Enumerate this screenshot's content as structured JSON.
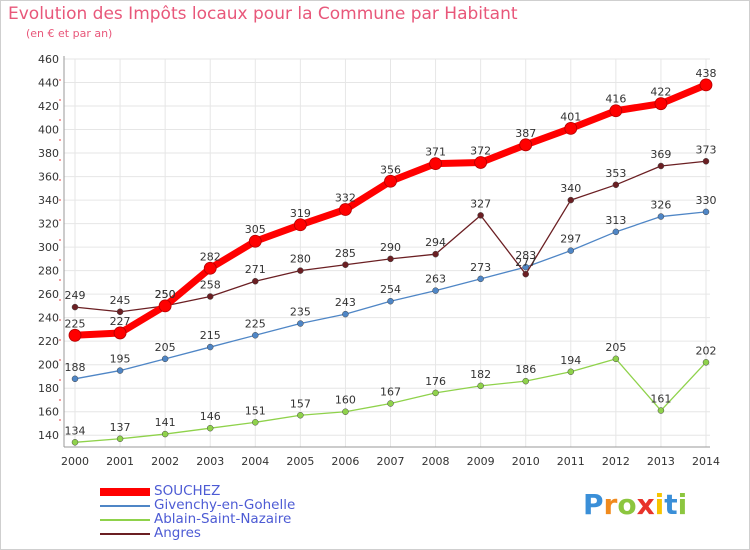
{
  "header": {
    "title": "Evolution des Impôts locaux pour la Commune par Habitant",
    "subtitle": "(en € et par an)"
  },
  "chart_data": {
    "type": "line",
    "title": "Evolution des Impôts locaux pour la Commune par Habitant",
    "subtitle": "(en € et par an)",
    "xlabel": "",
    "ylabel": "",
    "x": [
      "2000",
      "2001",
      "2002",
      "2003",
      "2004",
      "2005",
      "2006",
      "2007",
      "2008",
      "2009",
      "2010",
      "2011",
      "2012",
      "2013",
      "2014"
    ],
    "ylim": [
      130,
      460
    ],
    "yticks": [
      140,
      160,
      180,
      200,
      220,
      240,
      260,
      280,
      300,
      320,
      340,
      360,
      380,
      400,
      420,
      440,
      460
    ],
    "grid": true,
    "legend_position": "bottom-left",
    "series": [
      {
        "name": "SOUCHEZ",
        "color": "#ff0000",
        "values": [
          225,
          227,
          250,
          282,
          305,
          319,
          332,
          356,
          371,
          372,
          387,
          401,
          416,
          422,
          438
        ]
      },
      {
        "name": "Givenchy-en-Gohelle",
        "color": "#4f86c6",
        "values": [
          188,
          195,
          205,
          215,
          225,
          235,
          243,
          254,
          263,
          273,
          283,
          297,
          313,
          326,
          330
        ]
      },
      {
        "name": "Ablain-Saint-Nazaire",
        "color": "#8fd24b",
        "values": [
          134,
          137,
          141,
          146,
          151,
          157,
          160,
          167,
          176,
          182,
          186,
          194,
          205,
          161,
          202
        ]
      },
      {
        "name": "Angres",
        "color": "#6b1f23",
        "values": [
          249,
          245,
          250,
          258,
          271,
          280,
          285,
          290,
          294,
          327,
          277,
          340,
          353,
          369,
          373
        ]
      }
    ]
  },
  "legend": [
    {
      "label": "SOUCHEZ",
      "color": "#ff0000"
    },
    {
      "label": "Givenchy-en-Gohelle",
      "color": "#4f86c6"
    },
    {
      "label": "Ablain-Saint-Nazaire",
      "color": "#8fd24b"
    },
    {
      "label": "Angres",
      "color": "#6b1f23"
    }
  ],
  "logo": {
    "letters": [
      "P",
      "r",
      "o",
      "x",
      "i",
      "t",
      "i"
    ],
    "colors": [
      "#3a8fd8",
      "#f08a1d",
      "#8cc63f",
      "#e8332a",
      "#f6c400",
      "#3a8fd8",
      "#8cc63f"
    ]
  }
}
